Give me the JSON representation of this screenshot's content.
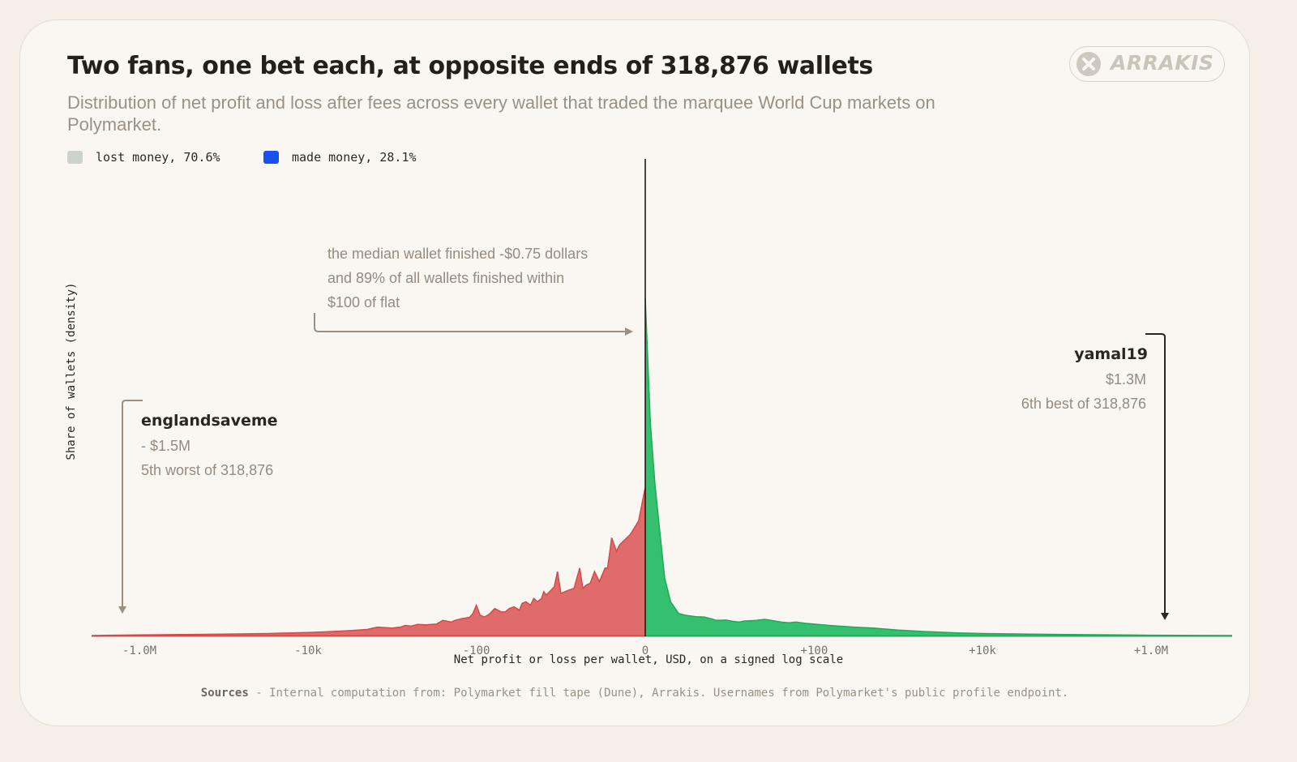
{
  "header": {
    "title": "Two fans, one bet each, at opposite ends of 318,876 wallets",
    "subtitle": "Distribution of net profit and loss after fees across every wallet that traded the marquee World Cup markets on Polymarket.",
    "logo_text": "ARRAKIS",
    "logo_icon": "x-circle-icon"
  },
  "legend": [
    {
      "label": "lost money, 70.6%",
      "color": "#cdd2cc"
    },
    {
      "label": "made money, 28.1%",
      "color": "#1a4ff0"
    }
  ],
  "colors": {
    "loss_fill": "#e06b6b",
    "loss_line": "#d24a4a",
    "gain_fill": "#34c06e",
    "gain_line": "#1fa958",
    "zero_line": "#1e1a17",
    "annotation_line": "#9a8f82",
    "annotation_line_dark": "#2b2622"
  },
  "chart_data": {
    "type": "area",
    "xlabel": "Net profit or loss per wallet, USD, on a signed log scale",
    "ylabel": "Share of wallets (density)",
    "x_scale": "signed-log",
    "x_ticks": [
      {
        "value": -1000000,
        "label": "-1.0M"
      },
      {
        "value": -10000,
        "label": "-10k"
      },
      {
        "value": -100,
        "label": "-100"
      },
      {
        "value": 0,
        "label": "0"
      },
      {
        "value": 100,
        "label": "+100"
      },
      {
        "value": 10000,
        "label": "+10k"
      },
      {
        "value": 1000000,
        "label": "+1.0M"
      }
    ],
    "xlim": [
      -10000000,
      10000000
    ],
    "ylim": [
      0,
      1
    ],
    "grid": false,
    "legend_position": "top-left",
    "series": [
      {
        "name": "lost money",
        "x": [
          -10000000,
          -1000000,
          -300000,
          -100000,
          -30000,
          -10000,
          -5000,
          -3000,
          -2000,
          -1500,
          -1000,
          -800,
          -700,
          -600,
          -500,
          -400,
          -300,
          -250,
          -200,
          -180,
          -150,
          -120,
          -110,
          -100,
          -90,
          -80,
          -70,
          -60,
          -50,
          -45,
          -40,
          -35,
          -30,
          -28,
          -25,
          -22,
          -20,
          -18,
          -16,
          -15,
          -14,
          -12,
          -11,
          -10,
          -9,
          -8,
          -7,
          -6,
          -5,
          -4.5,
          -4,
          -3.5,
          -3,
          -2.5,
          -2,
          -1.8,
          -1.5,
          -1.2,
          -1,
          -0.5,
          -0.2,
          0
        ],
        "y": [
          0.0,
          0.002,
          0.003,
          0.004,
          0.006,
          0.009,
          0.012,
          0.015,
          0.018,
          0.025,
          0.022,
          0.025,
          0.03,
          0.028,
          0.033,
          0.032,
          0.034,
          0.045,
          0.04,
          0.045,
          0.05,
          0.054,
          0.065,
          0.09,
          0.06,
          0.055,
          0.063,
          0.08,
          0.07,
          0.07,
          0.08,
          0.085,
          0.075,
          0.095,
          0.1,
          0.09,
          0.11,
          0.1,
          0.11,
          0.13,
          0.12,
          0.135,
          0.145,
          0.19,
          0.125,
          0.13,
          0.135,
          0.14,
          0.2,
          0.14,
          0.15,
          0.155,
          0.19,
          0.16,
          0.2,
          0.2,
          0.29,
          0.25,
          0.27,
          0.3,
          0.34,
          0.44
        ]
      },
      {
        "name": "made money",
        "x": [
          0,
          0.15,
          0.3,
          0.5,
          0.7,
          1,
          1.5,
          2,
          3,
          4,
          5,
          6,
          8,
          10,
          12,
          14,
          16,
          20,
          25,
          30,
          40,
          50,
          60,
          80,
          100,
          150,
          200,
          300,
          500,
          1000,
          2000,
          5000,
          10000,
          100000,
          1000000,
          10000000
        ],
        "y": [
          1.0,
          0.63,
          0.45,
          0.3,
          0.17,
          0.1,
          0.065,
          0.06,
          0.056,
          0.055,
          0.05,
          0.045,
          0.046,
          0.042,
          0.04,
          0.043,
          0.044,
          0.045,
          0.048,
          0.045,
          0.04,
          0.038,
          0.04,
          0.036,
          0.034,
          0.03,
          0.028,
          0.025,
          0.022,
          0.016,
          0.012,
          0.008,
          0.006,
          0.003,
          0.001,
          0.0
        ]
      }
    ],
    "annotations": {
      "median": {
        "lines": [
          "the median wallet finished -$0.75 dollars",
          "and 89% of all wallets finished within",
          "$100 of flat"
        ]
      },
      "worst": {
        "name": "englandsaveme",
        "amount": "- $1.5M",
        "rank": "5th worst of 318,876",
        "x_value": -1500000
      },
      "best": {
        "name": "yamal19",
        "amount": "$1.3M",
        "rank": "6th best of 318,876",
        "x_value": 1300000
      }
    }
  },
  "footer": {
    "sources_label": "Sources",
    "sources_text": " - Internal computation from: Polymarket fill tape (Dune), Arrakis. Usernames from Polymarket's public profile endpoint."
  }
}
